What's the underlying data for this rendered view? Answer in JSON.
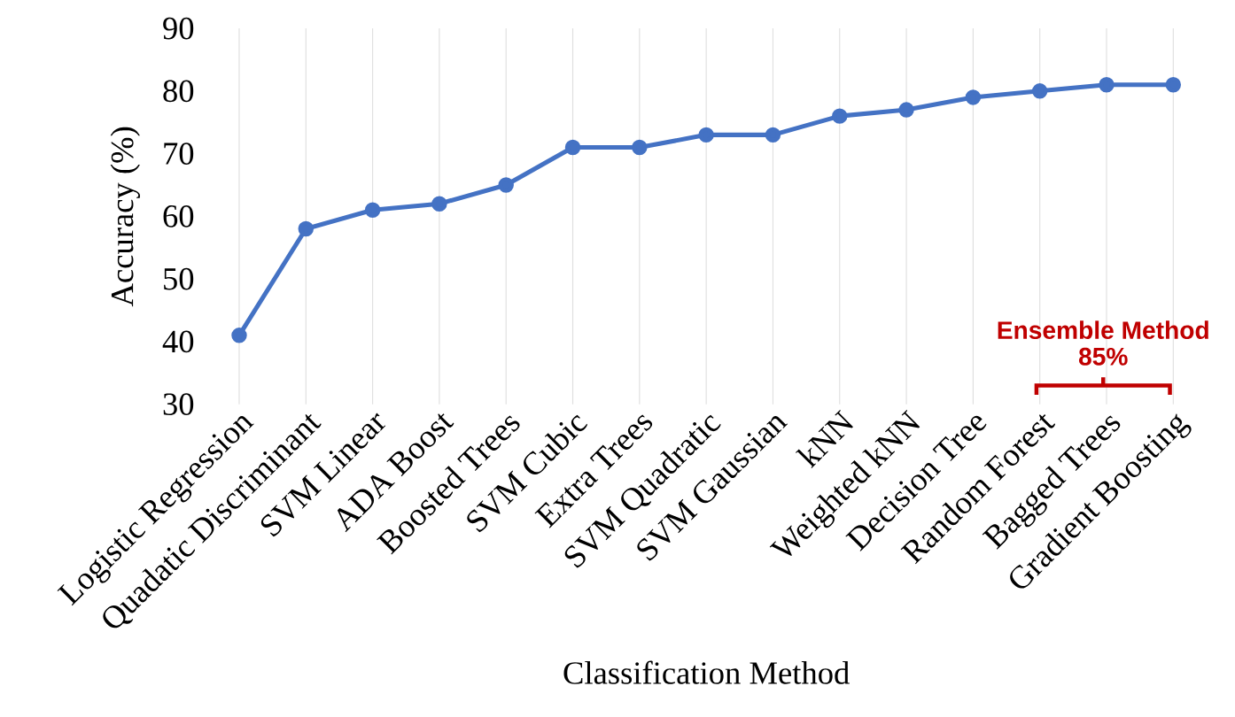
{
  "chart_data": {
    "type": "line",
    "xlabel": "Classification Method",
    "ylabel": "Accuracy (%)",
    "categories": [
      "Logistic Regression",
      "Quadatic Discriminant",
      "SVM Linear",
      "ADA Boost",
      "Boosted Trees",
      "SVM Cubic",
      "Extra Trees",
      "SVM Quadratic",
      "SVM Gaussian",
      "kNN",
      "Weighted kNN",
      "Decision Tree",
      "Random Forest",
      "Bagged Trees",
      "Gradient Boosting"
    ],
    "values": [
      41,
      58,
      61,
      62,
      65,
      71,
      71,
      73,
      73,
      76,
      77,
      79,
      80,
      81,
      81
    ],
    "color": "#4472c4",
    "marker": "circle",
    "line_style": "solid",
    "grid": "x",
    "ylim": [
      30,
      90
    ],
    "yticks": [
      30,
      40,
      50,
      60,
      70,
      80,
      90
    ],
    "annotations": [
      "Ensemble Method",
      "85%"
    ]
  }
}
